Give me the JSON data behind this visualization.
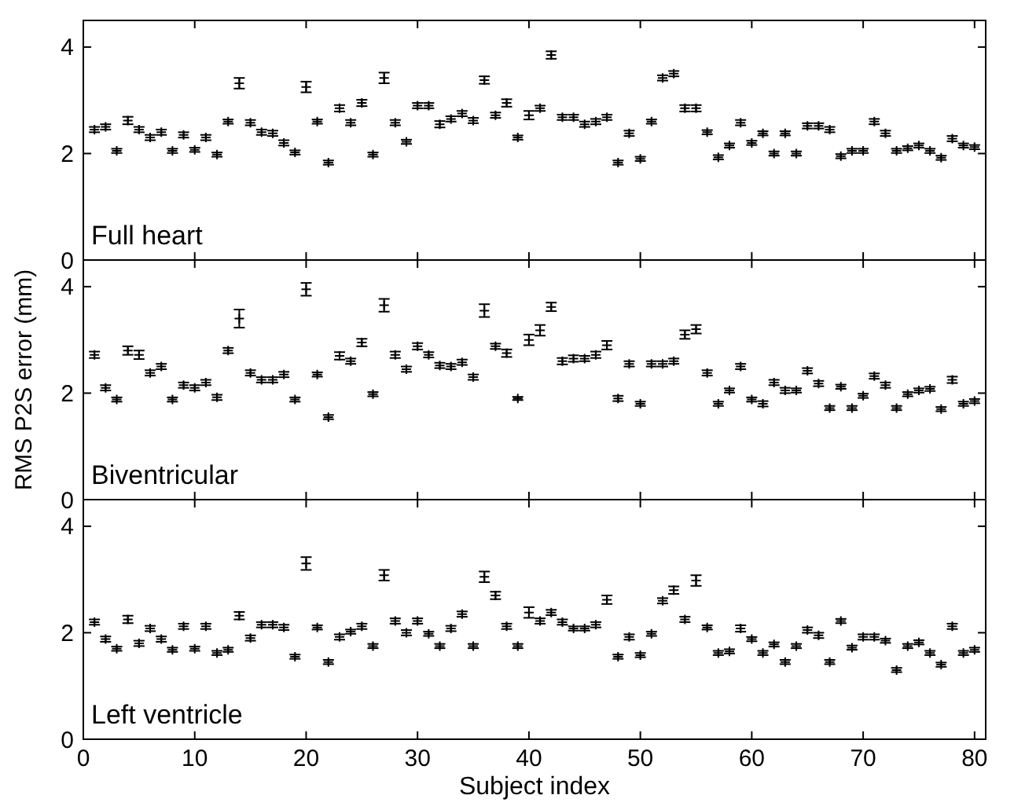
{
  "chart_data": [
    {
      "type": "scatter",
      "title": "Full heart",
      "marker": "cross",
      "grid": false,
      "tick_labels": "y",
      "xlim": [
        0,
        81
      ],
      "xticks": [
        0,
        10,
        20,
        30,
        40,
        50,
        60,
        70,
        80
      ],
      "ylim": [
        0,
        4.5
      ],
      "yticks": [
        0,
        2,
        4
      ],
      "x": [
        1,
        2,
        3,
        4,
        5,
        6,
        7,
        8,
        9,
        10,
        11,
        12,
        13,
        14,
        15,
        16,
        17,
        18,
        19,
        20,
        21,
        22,
        23,
        24,
        25,
        26,
        27,
        28,
        29,
        30,
        31,
        32,
        33,
        34,
        35,
        36,
        37,
        38,
        39,
        40,
        41,
        42,
        43,
        44,
        45,
        46,
        47,
        48,
        49,
        50,
        51,
        52,
        53,
        54,
        55,
        56,
        57,
        58,
        59,
        60,
        61,
        62,
        63,
        64,
        65,
        66,
        67,
        68,
        69,
        70,
        71,
        72,
        73,
        74,
        75,
        76,
        77,
        78,
        79,
        80
      ],
      "values": [
        2.45,
        2.5,
        2.05,
        2.62,
        2.45,
        2.3,
        2.4,
        2.05,
        2.35,
        2.07,
        2.3,
        1.98,
        2.6,
        3.32,
        2.58,
        2.4,
        2.38,
        2.2,
        2.02,
        3.25,
        2.6,
        1.83,
        2.85,
        2.58,
        2.95,
        1.98,
        3.42,
        2.58,
        2.22,
        2.9,
        2.9,
        2.55,
        2.65,
        2.75,
        2.62,
        3.38,
        2.72,
        2.95,
        2.3,
        2.72,
        2.85,
        3.85,
        2.68,
        2.68,
        2.55,
        2.6,
        2.68,
        1.83,
        2.38,
        1.9,
        2.6,
        3.42,
        3.5,
        2.85,
        2.85,
        2.4,
        1.93,
        2.15,
        2.58,
        2.2,
        2.38,
        2.0,
        2.38,
        2.0,
        2.52,
        2.52,
        2.45,
        1.95,
        2.05,
        2.05,
        2.6,
        2.38,
        2.05,
        2.1,
        2.15,
        2.05,
        1.92,
        2.28,
        2.15,
        2.12
      ],
      "errors": [
        0.05,
        0.05,
        0.04,
        0.07,
        0.05,
        0.05,
        0.05,
        0.04,
        0.05,
        0.04,
        0.05,
        0.04,
        0.04,
        0.1,
        0.05,
        0.05,
        0.05,
        0.05,
        0.04,
        0.1,
        0.04,
        0.04,
        0.06,
        0.05,
        0.06,
        0.04,
        0.1,
        0.05,
        0.04,
        0.05,
        0.05,
        0.06,
        0.05,
        0.05,
        0.05,
        0.07,
        0.05,
        0.07,
        0.04,
        0.08,
        0.05,
        0.07,
        0.05,
        0.05,
        0.05,
        0.05,
        0.05,
        0.04,
        0.05,
        0.04,
        0.04,
        0.05,
        0.05,
        0.06,
        0.06,
        0.04,
        0.04,
        0.04,
        0.05,
        0.04,
        0.04,
        0.04,
        0.04,
        0.04,
        0.05,
        0.05,
        0.05,
        0.04,
        0.04,
        0.04,
        0.05,
        0.05,
        0.04,
        0.04,
        0.04,
        0.04,
        0.04,
        0.05,
        0.04,
        0.04
      ]
    },
    {
      "type": "scatter",
      "title": "Biventricular",
      "ylabel": "RMS P2S error (mm)",
      "marker": "cross",
      "grid": false,
      "tick_labels": "y",
      "xlim": [
        0,
        81
      ],
      "xticks": [
        0,
        10,
        20,
        30,
        40,
        50,
        60,
        70,
        80
      ],
      "ylim": [
        0,
        4.5
      ],
      "yticks": [
        0,
        2,
        4
      ],
      "x": [
        1,
        2,
        3,
        4,
        5,
        6,
        7,
        8,
        9,
        10,
        11,
        12,
        13,
        14,
        15,
        16,
        17,
        18,
        19,
        20,
        21,
        22,
        23,
        24,
        25,
        26,
        27,
        28,
        29,
        30,
        31,
        32,
        33,
        34,
        35,
        36,
        37,
        38,
        39,
        40,
        41,
        42,
        43,
        44,
        45,
        46,
        47,
        48,
        49,
        50,
        51,
        52,
        53,
        54,
        55,
        56,
        57,
        58,
        59,
        60,
        61,
        62,
        63,
        64,
        65,
        66,
        67,
        68,
        69,
        70,
        71,
        72,
        73,
        74,
        75,
        76,
        77,
        78,
        79,
        80
      ],
      "values": [
        2.72,
        2.1,
        1.88,
        2.8,
        2.72,
        2.38,
        2.5,
        1.88,
        2.15,
        2.1,
        2.2,
        1.92,
        2.8,
        3.4,
        2.38,
        2.25,
        2.25,
        2.35,
        1.88,
        3.95,
        2.35,
        1.55,
        2.7,
        2.6,
        2.95,
        1.98,
        3.65,
        2.72,
        2.45,
        2.88,
        2.72,
        2.52,
        2.5,
        2.58,
        2.3,
        3.55,
        2.88,
        2.75,
        1.9,
        3.0,
        3.18,
        3.62,
        2.6,
        2.65,
        2.65,
        2.72,
        2.9,
        1.9,
        2.55,
        1.8,
        2.55,
        2.55,
        2.6,
        3.1,
        3.2,
        2.38,
        1.8,
        2.05,
        2.5,
        1.88,
        1.8,
        2.2,
        2.05,
        2.05,
        2.42,
        2.18,
        1.72,
        2.12,
        1.72,
        1.95,
        2.32,
        2.15,
        1.72,
        1.98,
        2.05,
        2.08,
        1.7,
        2.25,
        1.8,
        1.85
      ],
      "errors": [
        0.06,
        0.05,
        0.04,
        0.08,
        0.08,
        0.05,
        0.05,
        0.04,
        0.05,
        0.05,
        0.05,
        0.05,
        0.05,
        0.17,
        0.05,
        0.05,
        0.05,
        0.05,
        0.04,
        0.12,
        0.04,
        0.04,
        0.07,
        0.05,
        0.07,
        0.04,
        0.12,
        0.06,
        0.05,
        0.06,
        0.05,
        0.05,
        0.05,
        0.05,
        0.05,
        0.12,
        0.05,
        0.07,
        0.03,
        0.1,
        0.1,
        0.08,
        0.06,
        0.06,
        0.05,
        0.06,
        0.08,
        0.05,
        0.05,
        0.04,
        0.05,
        0.05,
        0.05,
        0.08,
        0.08,
        0.05,
        0.04,
        0.04,
        0.05,
        0.04,
        0.05,
        0.05,
        0.05,
        0.04,
        0.05,
        0.05,
        0.04,
        0.04,
        0.04,
        0.04,
        0.05,
        0.05,
        0.04,
        0.04,
        0.04,
        0.04,
        0.04,
        0.06,
        0.04,
        0.04
      ]
    },
    {
      "type": "scatter",
      "title": "Left ventricle",
      "xlabel": "Subject index",
      "marker": "cross",
      "grid": false,
      "xlim": [
        0,
        81
      ],
      "xticks": [
        0,
        10,
        20,
        30,
        40,
        50,
        60,
        70,
        80
      ],
      "ylim": [
        0,
        4.5
      ],
      "yticks": [
        0,
        2,
        4
      ],
      "x": [
        1,
        2,
        3,
        4,
        5,
        6,
        7,
        8,
        9,
        10,
        11,
        12,
        13,
        14,
        15,
        16,
        17,
        18,
        19,
        20,
        21,
        22,
        23,
        24,
        25,
        26,
        27,
        28,
        29,
        30,
        31,
        32,
        33,
        34,
        35,
        36,
        37,
        38,
        39,
        40,
        41,
        42,
        43,
        44,
        45,
        46,
        47,
        48,
        49,
        50,
        51,
        52,
        53,
        54,
        55,
        56,
        57,
        58,
        59,
        60,
        61,
        62,
        63,
        64,
        65,
        66,
        67,
        68,
        69,
        70,
        71,
        72,
        73,
        74,
        75,
        76,
        77,
        78,
        79,
        80
      ],
      "values": [
        2.2,
        1.88,
        1.7,
        2.25,
        1.8,
        2.08,
        1.88,
        1.68,
        2.12,
        1.7,
        2.12,
        1.62,
        1.68,
        2.32,
        1.9,
        2.15,
        2.15,
        2.1,
        1.55,
        3.3,
        2.1,
        1.45,
        1.92,
        2.02,
        2.12,
        1.75,
        3.08,
        2.22,
        2.0,
        2.22,
        1.98,
        1.75,
        2.08,
        2.35,
        1.75,
        3.05,
        2.7,
        2.12,
        1.75,
        2.38,
        2.22,
        2.38,
        2.2,
        2.08,
        2.08,
        2.15,
        2.62,
        1.55,
        1.92,
        1.58,
        1.98,
        2.6,
        2.8,
        2.25,
        2.98,
        2.1,
        1.62,
        1.65,
        2.08,
        1.88,
        1.62,
        1.78,
        1.45,
        1.75,
        2.05,
        1.95,
        1.45,
        2.22,
        1.72,
        1.92,
        1.92,
        1.85,
        1.3,
        1.75,
        1.82,
        1.62,
        1.4,
        2.12,
        1.62,
        1.68
      ],
      "errors": [
        0.05,
        0.05,
        0.04,
        0.07,
        0.05,
        0.05,
        0.05,
        0.04,
        0.05,
        0.04,
        0.05,
        0.04,
        0.04,
        0.07,
        0.05,
        0.05,
        0.05,
        0.05,
        0.04,
        0.12,
        0.04,
        0.04,
        0.05,
        0.04,
        0.05,
        0.04,
        0.1,
        0.05,
        0.05,
        0.05,
        0.04,
        0.04,
        0.05,
        0.05,
        0.04,
        0.1,
        0.07,
        0.05,
        0.04,
        0.1,
        0.05,
        0.05,
        0.05,
        0.04,
        0.04,
        0.05,
        0.08,
        0.04,
        0.05,
        0.04,
        0.04,
        0.05,
        0.07,
        0.05,
        0.1,
        0.04,
        0.04,
        0.04,
        0.06,
        0.04,
        0.04,
        0.04,
        0.04,
        0.04,
        0.05,
        0.05,
        0.04,
        0.04,
        0.04,
        0.05,
        0.05,
        0.04,
        0.04,
        0.04,
        0.04,
        0.04,
        0.04,
        0.05,
        0.04,
        0.04
      ]
    }
  ]
}
